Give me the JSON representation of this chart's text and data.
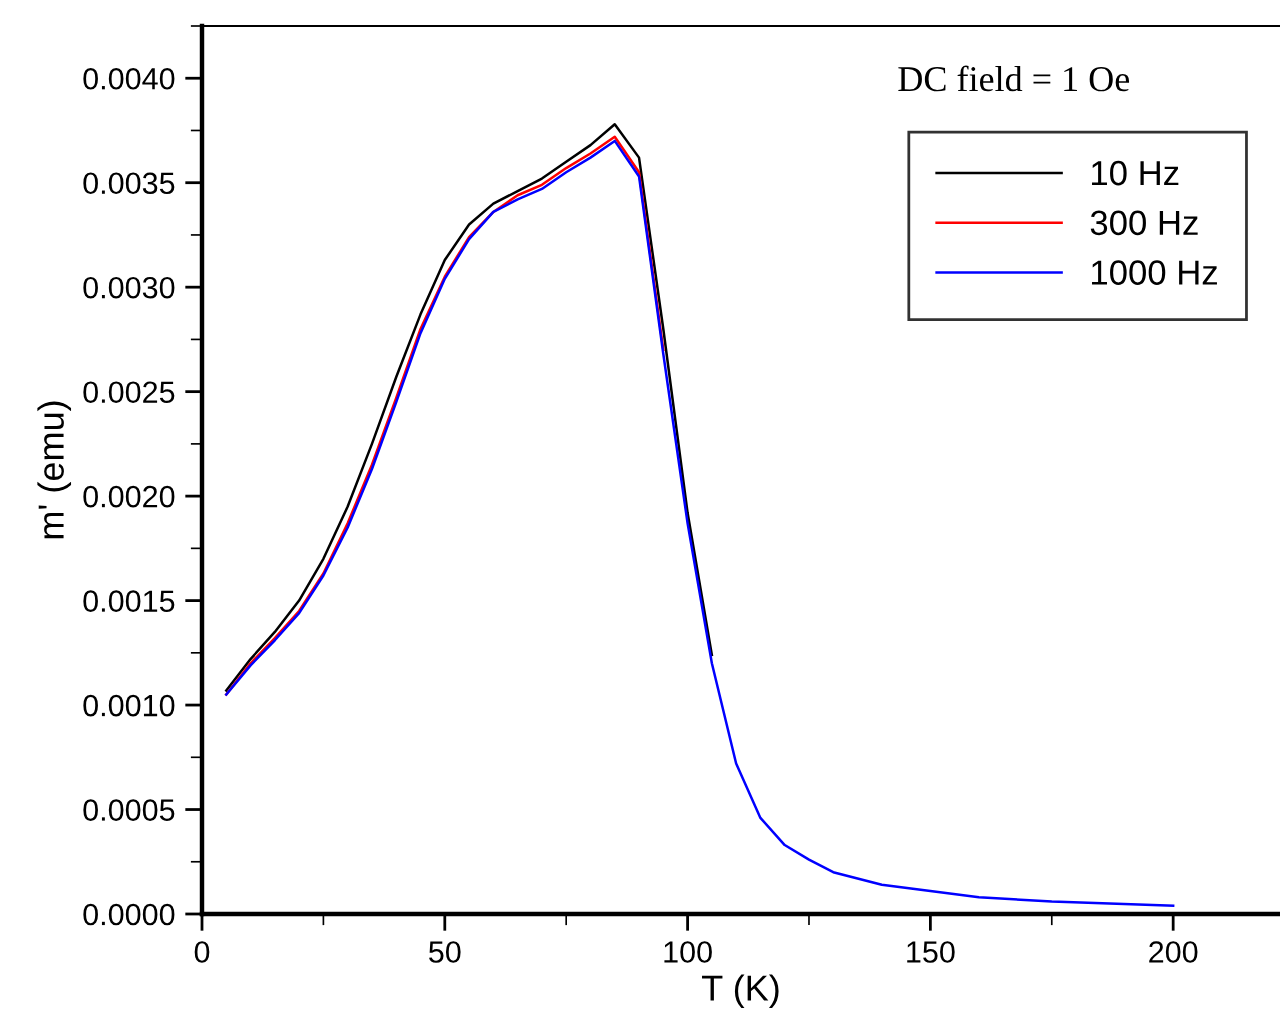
{
  "chart_data": {
    "type": "line",
    "xlabel": "T (K)",
    "ylabel": "m' (emu)",
    "annotations": [
      "DC field = 1 Oe"
    ],
    "x": [
      5,
      10,
      15,
      20,
      25,
      30,
      35,
      40,
      45,
      50,
      55,
      60,
      65,
      70,
      75,
      80,
      85,
      90,
      95,
      100,
      105,
      110,
      115,
      120,
      125,
      130,
      140,
      150,
      160,
      175,
      200
    ],
    "series": [
      {
        "name": "10 Hz",
        "color": "#000000",
        "values": [
          0.00107,
          0.00122,
          0.00135,
          0.0015,
          0.0017,
          0.00195,
          0.00225,
          0.00257,
          0.00287,
          0.00313,
          0.0033,
          0.0034,
          0.00346,
          0.00352,
          0.0036,
          0.00368,
          0.00378,
          0.00362,
          0.0028,
          0.00192,
          0.00124,
          null,
          null,
          null,
          null,
          null,
          null,
          null,
          null,
          null,
          null
        ]
      },
      {
        "name": "300 Hz",
        "color": "#ff0000",
        "values": [
          0.00105,
          0.0012,
          0.00132,
          0.00145,
          0.00163,
          0.00187,
          0.00215,
          0.00247,
          0.0028,
          0.00305,
          0.00324,
          0.00336,
          0.00344,
          0.00349,
          0.00357,
          0.00364,
          0.00372,
          0.00355,
          0.0027,
          null,
          null,
          null,
          null,
          null,
          null,
          null,
          null,
          null,
          null,
          null,
          null
        ]
      },
      {
        "name": "1000 Hz",
        "color": "#0000ff",
        "values": [
          0.00105,
          0.00119,
          0.00131,
          0.00144,
          0.00162,
          0.00185,
          0.00213,
          0.00245,
          0.00278,
          0.00304,
          0.00323,
          0.00336,
          0.00342,
          0.00347,
          0.00355,
          0.00362,
          0.0037,
          0.00353,
          0.00268,
          0.00187,
          0.0012,
          0.00072,
          0.00046,
          0.00033,
          0.00026,
          0.0002,
          0.00014,
          0.00011,
          8e-05,
          6e-05,
          4e-05
        ]
      }
    ],
    "xlim": [
      0,
      222
    ],
    "xticks": [
      0,
      50,
      100,
      150,
      200
    ],
    "ylim": [
      0,
      0.00425
    ],
    "yticks": [
      {
        "value": 0,
        "label": "0.0000"
      },
      {
        "value": 0.0005,
        "label": "0.0005"
      },
      {
        "value": 0.001,
        "label": "0.0010"
      },
      {
        "value": 0.0015,
        "label": "0.0015"
      },
      {
        "value": 0.002,
        "label": "0.0020"
      },
      {
        "value": 0.0025,
        "label": "0.0025"
      },
      {
        "value": 0.003,
        "label": "0.0030"
      },
      {
        "value": 0.0035,
        "label": "0.0035"
      },
      {
        "value": 0.004,
        "label": "0.0040"
      }
    ],
    "legend": "top right",
    "grid": false,
    "marker": "none",
    "line_style": "solid"
  }
}
